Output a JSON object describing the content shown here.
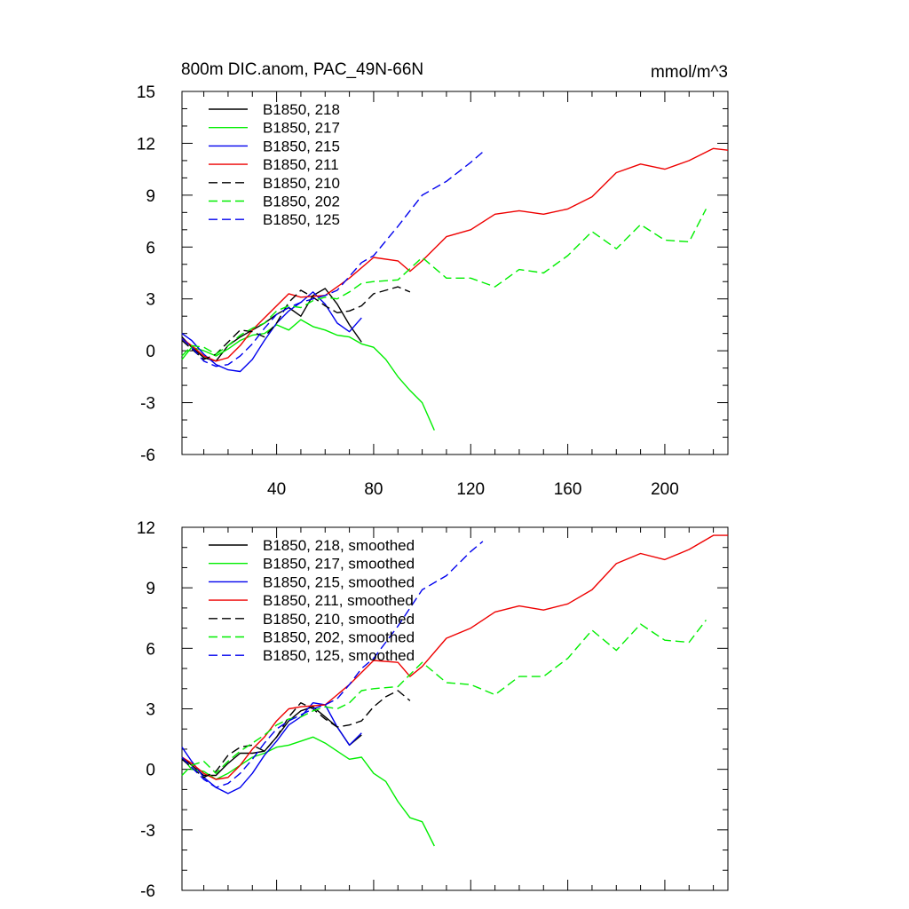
{
  "chart_data": [
    {
      "type": "line",
      "title": "800m DIC.anom, PAC_49N-66N",
      "units": "mmol/m^3",
      "xlim": [
        1,
        226
      ],
      "ylim": [
        -6,
        15
      ],
      "xticks": [
        40,
        80,
        120,
        160,
        200
      ],
      "xtick_labels": [
        "40",
        "80",
        "120",
        "160",
        "200"
      ],
      "yticks": [
        -6,
        -3,
        0,
        3,
        6,
        9,
        12,
        15
      ],
      "ytick_labels": [
        "-6",
        "-3",
        "0",
        "3",
        "6",
        "9",
        "12",
        "15"
      ],
      "grid": false,
      "legend_position": "top-left",
      "series": [
        {
          "name": "B1850, 218",
          "color": "#000000",
          "dash": "solid",
          "x": [
            1,
            5,
            10,
            15,
            20,
            25,
            30,
            35,
            40,
            45,
            50,
            55,
            60,
            65,
            70,
            75
          ],
          "y": [
            0.8,
            0.2,
            -0.4,
            -0.6,
            0.3,
            0.8,
            1.2,
            1.6,
            2.1,
            2.5,
            2.0,
            3.2,
            3.6,
            2.7,
            1.5,
            0.5
          ]
        },
        {
          "name": "B1850, 217",
          "color": "#00ee00",
          "dash": "solid",
          "x": [
            1,
            5,
            10,
            15,
            20,
            25,
            30,
            35,
            40,
            45,
            50,
            55,
            60,
            65,
            70,
            75,
            80,
            85,
            90,
            95,
            100,
            105
          ],
          "y": [
            -0.5,
            0.2,
            0.0,
            -0.3,
            0.1,
            0.6,
            0.9,
            1.0,
            1.5,
            1.2,
            1.8,
            1.4,
            1.2,
            0.9,
            0.8,
            0.4,
            0.2,
            -0.5,
            -1.5,
            -2.3,
            -3.0,
            -4.6
          ]
        },
        {
          "name": "B1850, 215",
          "color": "#0000ee",
          "dash": "solid",
          "x": [
            1,
            5,
            10,
            15,
            20,
            25,
            30,
            35,
            40,
            45,
            50,
            55,
            60,
            65,
            70,
            75
          ],
          "y": [
            1.0,
            0.6,
            -0.2,
            -0.8,
            -1.1,
            -1.2,
            -0.5,
            0.6,
            1.6,
            2.3,
            2.8,
            3.4,
            2.7,
            1.6,
            1.1,
            1.9
          ]
        },
        {
          "name": "B1850, 211",
          "color": "#ee0000",
          "dash": "solid",
          "x": [
            1,
            5,
            10,
            15,
            20,
            25,
            30,
            35,
            40,
            45,
            50,
            60,
            70,
            80,
            90,
            95,
            100,
            110,
            120,
            130,
            140,
            150,
            160,
            170,
            180,
            190,
            200,
            210,
            220,
            226
          ],
          "y": [
            0.7,
            0.3,
            -0.3,
            -0.6,
            -0.4,
            0.3,
            1.2,
            1.9,
            2.6,
            3.3,
            3.1,
            3.2,
            4.2,
            5.4,
            5.2,
            4.6,
            5.2,
            6.6,
            7.0,
            7.9,
            8.1,
            7.9,
            8.2,
            8.9,
            10.3,
            10.8,
            10.5,
            11.0,
            11.7,
            11.6
          ]
        },
        {
          "name": "B1850, 210",
          "color": "#000000",
          "dash": "dashed",
          "x": [
            1,
            5,
            10,
            15,
            20,
            25,
            30,
            35,
            40,
            45,
            50,
            55,
            60,
            65,
            70,
            75,
            80,
            85,
            90,
            95
          ],
          "y": [
            0.6,
            0.1,
            -0.5,
            -0.2,
            0.5,
            1.2,
            1.1,
            0.8,
            1.6,
            2.8,
            3.5,
            3.1,
            2.6,
            2.2,
            2.3,
            2.6,
            3.3,
            3.5,
            3.7,
            3.4
          ]
        },
        {
          "name": "B1850, 202",
          "color": "#00ee00",
          "dash": "dashed",
          "x": [
            1,
            5,
            10,
            15,
            20,
            25,
            30,
            35,
            40,
            45,
            50,
            55,
            60,
            65,
            70,
            75,
            80,
            90,
            100,
            110,
            120,
            130,
            140,
            150,
            160,
            170,
            180,
            190,
            200,
            210,
            217
          ],
          "y": [
            -0.3,
            0.3,
            0.2,
            -0.2,
            0.3,
            0.9,
            1.3,
            1.6,
            2.3,
            2.6,
            2.5,
            2.9,
            3.1,
            3.0,
            3.4,
            3.9,
            4.0,
            4.1,
            5.4,
            4.2,
            4.2,
            3.7,
            4.7,
            4.5,
            5.5,
            6.9,
            5.9,
            7.3,
            6.4,
            6.3,
            8.2
          ]
        },
        {
          "name": "B1850, 125",
          "color": "#0000ee",
          "dash": "dashed",
          "x": [
            1,
            5,
            10,
            15,
            20,
            25,
            30,
            35,
            40,
            45,
            50,
            55,
            60,
            65,
            70,
            75,
            80,
            90,
            100,
            110,
            120,
            125
          ],
          "y": [
            0.7,
            0.2,
            -0.6,
            -0.9,
            -0.8,
            -0.3,
            0.4,
            1.3,
            2.1,
            2.5,
            2.8,
            3.0,
            3.2,
            3.5,
            4.3,
            5.1,
            5.5,
            7.2,
            9.0,
            9.8,
            10.9,
            11.5
          ]
        }
      ]
    },
    {
      "type": "line",
      "title": "",
      "units": "",
      "xlim": [
        1,
        226
      ],
      "ylim": [
        -6,
        12
      ],
      "xticks": [
        40,
        80,
        120,
        160,
        200
      ],
      "xtick_labels": [],
      "yticks": [
        -6,
        -3,
        0,
        3,
        6,
        9,
        12
      ],
      "ytick_labels": [
        "-6",
        "-3",
        "0",
        "3",
        "6",
        "9",
        "12"
      ],
      "grid": false,
      "legend_position": "top-left",
      "series": [
        {
          "name": "B1850, 218, smoothed",
          "color": "#000000",
          "dash": "solid",
          "x": [
            1,
            5,
            10,
            15,
            20,
            25,
            30,
            35,
            40,
            45,
            50,
            55,
            60,
            65,
            70,
            75
          ],
          "y": [
            0.6,
            0.2,
            -0.3,
            -0.3,
            0.3,
            0.8,
            0.8,
            0.9,
            1.6,
            2.4,
            2.9,
            3.1,
            2.6,
            2.1,
            1.2,
            1.7
          ]
        },
        {
          "name": "B1850, 217, smoothed",
          "color": "#00ee00",
          "dash": "solid",
          "x": [
            1,
            5,
            10,
            15,
            20,
            25,
            30,
            35,
            40,
            45,
            50,
            55,
            60,
            65,
            70,
            75,
            80,
            85,
            90,
            95,
            100,
            105
          ],
          "y": [
            0.6,
            0.0,
            -0.1,
            -0.5,
            -0.2,
            0.2,
            0.6,
            0.8,
            1.1,
            1.2,
            1.4,
            1.6,
            1.3,
            0.9,
            0.5,
            0.6,
            -0.2,
            -0.6,
            -1.6,
            -2.4,
            -2.6,
            -3.8
          ]
        },
        {
          "name": "B1850, 215, smoothed",
          "color": "#0000ee",
          "dash": "solid",
          "x": [
            1,
            5,
            10,
            15,
            20,
            25,
            30,
            35,
            40,
            45,
            50,
            55,
            60,
            65,
            70,
            75
          ],
          "y": [
            1.1,
            0.4,
            -0.4,
            -0.9,
            -1.2,
            -0.9,
            -0.2,
            0.7,
            1.4,
            2.2,
            2.6,
            3.3,
            3.2,
            2.1,
            1.2,
            1.8
          ]
        },
        {
          "name": "B1850, 211, smoothed",
          "color": "#ee0000",
          "dash": "solid",
          "x": [
            1,
            5,
            10,
            15,
            20,
            25,
            30,
            35,
            40,
            45,
            50,
            60,
            70,
            80,
            90,
            95,
            100,
            110,
            120,
            130,
            140,
            150,
            160,
            170,
            180,
            190,
            200,
            210,
            220,
            226
          ],
          "y": [
            0.6,
            0.3,
            -0.2,
            -0.5,
            -0.4,
            0.2,
            1.0,
            1.6,
            2.4,
            3.0,
            3.1,
            3.2,
            4.2,
            5.4,
            5.3,
            4.6,
            5.1,
            6.5,
            7.0,
            7.8,
            8.1,
            7.9,
            8.2,
            8.9,
            10.2,
            10.7,
            10.4,
            10.9,
            11.6,
            11.6
          ]
        },
        {
          "name": "B1850, 210, smoothed",
          "color": "#000000",
          "dash": "dashed",
          "x": [
            1,
            5,
            10,
            15,
            20,
            25,
            30,
            35,
            40,
            45,
            50,
            55,
            60,
            65,
            70,
            75,
            80,
            85,
            90,
            95
          ],
          "y": [
            0.5,
            0.1,
            -0.4,
            -0.1,
            0.7,
            1.1,
            1.2,
            0.9,
            1.6,
            2.6,
            3.3,
            3.0,
            2.5,
            2.1,
            2.2,
            2.4,
            3.1,
            3.6,
            3.9,
            3.4
          ]
        },
        {
          "name": "B1850, 202, smoothed",
          "color": "#00ee00",
          "dash": "dashed",
          "x": [
            1,
            5,
            10,
            15,
            20,
            25,
            30,
            35,
            40,
            45,
            50,
            55,
            60,
            65,
            70,
            75,
            80,
            90,
            100,
            110,
            120,
            130,
            140,
            150,
            160,
            170,
            180,
            190,
            200,
            210,
            217
          ],
          "y": [
            -0.3,
            0.2,
            0.4,
            -0.2,
            0.4,
            0.9,
            1.3,
            1.7,
            2.2,
            2.5,
            2.6,
            2.9,
            3.1,
            3.0,
            3.3,
            3.9,
            4.0,
            4.1,
            5.3,
            4.3,
            4.2,
            3.7,
            4.6,
            4.6,
            5.5,
            6.9,
            5.9,
            7.2,
            6.4,
            6.3,
            7.4
          ]
        },
        {
          "name": "B1850, 125, smoothed",
          "color": "#0000ee",
          "dash": "dashed",
          "x": [
            1,
            5,
            10,
            15,
            20,
            25,
            30,
            35,
            40,
            45,
            50,
            55,
            60,
            65,
            70,
            75,
            80,
            90,
            100,
            110,
            120,
            125
          ],
          "y": [
            0.6,
            0.1,
            -0.5,
            -0.9,
            -0.7,
            -0.2,
            0.5,
            1.3,
            2.0,
            2.4,
            2.7,
            3.0,
            3.2,
            3.5,
            4.2,
            5.0,
            5.5,
            7.1,
            8.9,
            9.6,
            10.8,
            11.3
          ]
        }
      ]
    }
  ]
}
